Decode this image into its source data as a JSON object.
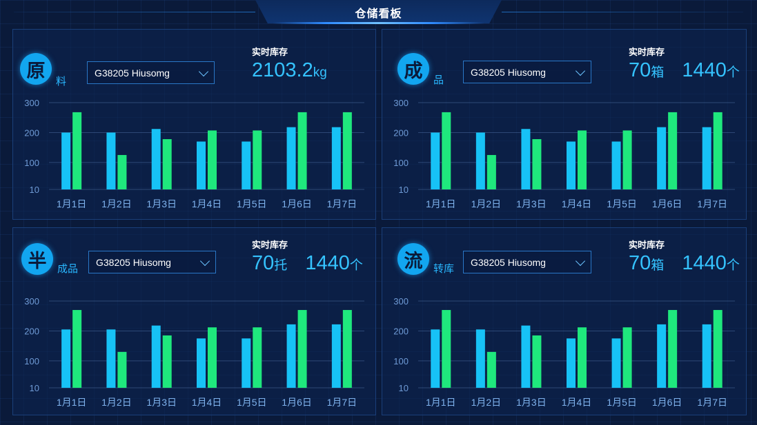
{
  "header": {
    "title": "仓储看板"
  },
  "panels": [
    {
      "id": "raw",
      "badge": "原",
      "badge_sub": "料",
      "select_value": "G38205  Hiusomg",
      "stock_label": "实时库存",
      "stock": [
        {
          "value": "2103.2",
          "unit": "kg"
        }
      ]
    },
    {
      "id": "finished",
      "badge": "成",
      "badge_sub": "品",
      "select_value": "G38205  Hiusomg",
      "stock_label": "实时库存",
      "stock": [
        {
          "value": "70",
          "unit": "箱"
        },
        {
          "value": "1440",
          "unit": "个"
        }
      ]
    },
    {
      "id": "semi",
      "badge": "半",
      "badge_sub": "成品",
      "select_value": "G38205  Hiusomg",
      "stock_label": "实时库存",
      "stock": [
        {
          "value": "70",
          "unit": "托"
        },
        {
          "value": "1440",
          "unit": "个"
        }
      ]
    },
    {
      "id": "transfer",
      "badge": "流",
      "badge_sub": "转库",
      "select_value": "G38205  Hiusomg",
      "stock_label": "实时库存",
      "stock": [
        {
          "value": "70",
          "unit": "箱"
        },
        {
          "value": "1440",
          "unit": "个"
        }
      ]
    }
  ],
  "colors": {
    "series_a": "#17c2f6",
    "series_b": "#1fe87d",
    "accent": "#35c3ff"
  },
  "chart_data": [
    {
      "type": "bar",
      "categories": [
        "1月1日",
        "1月2日",
        "1月3日",
        "1月4日",
        "1月5日",
        "1月6日",
        "1月7日"
      ],
      "y_ticks": [
        "10",
        "100",
        "200",
        "300"
      ],
      "ylim": [
        10,
        300
      ],
      "grid": true,
      "series": [
        {
          "values": [
            200,
            200,
            212,
            170,
            170,
            218,
            218
          ]
        },
        {
          "values": [
            268,
            125,
            178,
            207,
            207,
            268,
            268
          ]
        }
      ]
    },
    {
      "type": "bar",
      "categories": [
        "1月1日",
        "1月2日",
        "1月3日",
        "1月4日",
        "1月5日",
        "1月6日",
        "1月7日"
      ],
      "y_ticks": [
        "10",
        "100",
        "200",
        "300"
      ],
      "ylim": [
        10,
        300
      ],
      "grid": true,
      "series": [
        {
          "values": [
            200,
            200,
            212,
            170,
            170,
            218,
            218
          ]
        },
        {
          "values": [
            268,
            125,
            178,
            207,
            207,
            268,
            268
          ]
        }
      ]
    },
    {
      "type": "bar",
      "categories": [
        "1月1日",
        "1月2日",
        "1月3日",
        "1月4日",
        "1月5日",
        "1月6日",
        "1月7日"
      ],
      "y_ticks": [
        "10",
        "100",
        "200",
        "300"
      ],
      "ylim": [
        10,
        300
      ],
      "grid": true,
      "series": [
        {
          "values": [
            205,
            205,
            218,
            175,
            175,
            222,
            222
          ]
        },
        {
          "values": [
            270,
            130,
            185,
            212,
            212,
            270,
            270
          ]
        }
      ]
    },
    {
      "type": "bar",
      "categories": [
        "1月1日",
        "1月2日",
        "1月3日",
        "1月4日",
        "1月5日",
        "1月6日",
        "1月7日"
      ],
      "y_ticks": [
        "10",
        "100",
        "200",
        "300"
      ],
      "ylim": [
        10,
        300
      ],
      "grid": true,
      "series": [
        {
          "values": [
            205,
            205,
            218,
            175,
            175,
            222,
            222
          ]
        },
        {
          "values": [
            270,
            130,
            185,
            212,
            212,
            270,
            270
          ]
        }
      ]
    }
  ]
}
